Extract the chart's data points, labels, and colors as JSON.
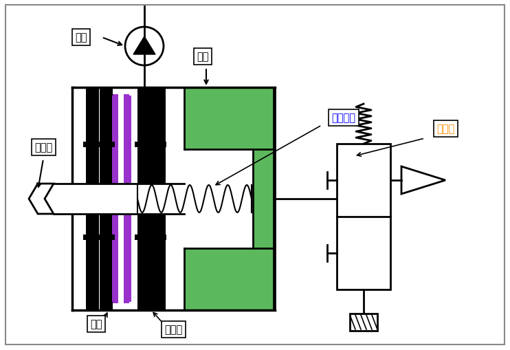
{
  "bg_color": "#ffffff",
  "green_color": "#5cb85c",
  "purple_color": "#9932CC",
  "black_color": "#000000",
  "labels": {
    "oil_pump": "油泵",
    "piston": "活塞",
    "mid_shaft": "中间轴",
    "return_spring": "回位弹簧",
    "solenoid": "电磁阀",
    "steel_plate": "锄片",
    "friction_plate": "摩擦片"
  },
  "label_colors": {
    "oil_pump": "#000000",
    "piston": "#000000",
    "mid_shaft": "#000000",
    "return_spring": "#0000FF",
    "solenoid": "#FF8C00",
    "steel_plate": "#000000",
    "friction_plate": "#000000"
  },
  "figsize": [
    7.42,
    5.1
  ],
  "dpi": 100
}
